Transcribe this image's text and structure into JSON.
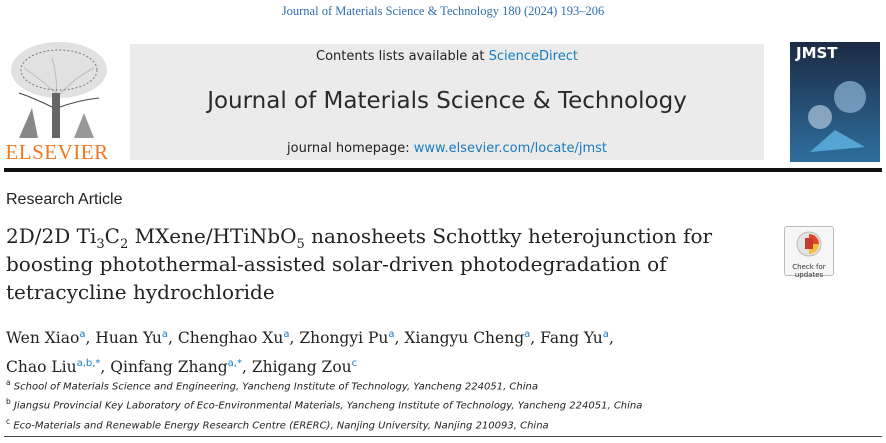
{
  "header": {
    "citation": "Journal of Materials Science & Technology 180 (2024) 193–206",
    "contents_prefix": "Contents lists available at ",
    "contents_link": "ScienceDirect",
    "journal": "Journal of Materials Science & Technology",
    "homepage_prefix": "journal homepage: ",
    "homepage_link": "www.elsevier.com/locate/jmst",
    "publisher": "ELSEVIER",
    "cover_title": "JMST"
  },
  "article": {
    "type": "Research Article",
    "title_parts": [
      {
        "text": "2D/2D Ti",
        "sub": false
      },
      {
        "text": "3",
        "sub": true
      },
      {
        "text": "C",
        "sub": false
      },
      {
        "text": "2",
        "sub": true
      },
      {
        "text": " MXene/HTiNbO",
        "sub": false
      },
      {
        "text": "5",
        "sub": true
      },
      {
        "text": " nanosheets Schottky heterojunction for boosting photothermal-assisted solar-driven photodegradation of tetracycline hydrochloride",
        "sub": false
      }
    ],
    "check_updates": "Check for updates",
    "author_separator": ",",
    "authors": [
      {
        "name": "Wen Xiao",
        "affil": "a"
      },
      {
        "name": "Huan Yu",
        "affil": "a"
      },
      {
        "name": "Chenghao Xu",
        "affil": "a"
      },
      {
        "name": "Zhongyi Pu",
        "affil": "a"
      },
      {
        "name": "Xiangyu Cheng",
        "affil": "a"
      },
      {
        "name": "Fang Yu",
        "affil": "a"
      },
      {
        "name": "Chao Liu",
        "affil": "a,b,*"
      },
      {
        "name": "Qinfang Zhang",
        "affil": "a,*"
      },
      {
        "name": "Zhigang Zou",
        "affil": "c"
      }
    ],
    "affiliations": [
      {
        "label": "a",
        "text": "School of Materials Science and Engineering, Yancheng Institute of Technology, Yancheng 224051, China"
      },
      {
        "label": "b",
        "text": "Jiangsu Provincial Key Laboratory of Eco-Environmental Materials, Yancheng Institute of Technology, Yancheng 224051, China"
      },
      {
        "label": "c",
        "text": "Eco-Materials and Renewable Energy Research Centre (ERERC), Nanjing University, Nanjing 210093, China"
      }
    ]
  }
}
